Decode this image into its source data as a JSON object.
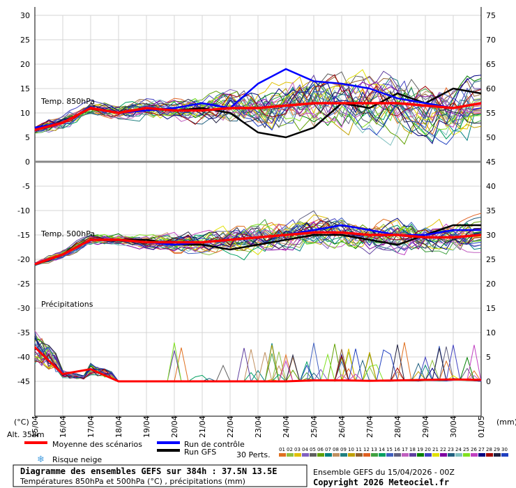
{
  "chart_data": {
    "type": "line",
    "title": "Diagramme des ensembles GEFS sur 384h : 37.5N 13.5E",
    "subtitle": "Températures 850hPa et 500hPa (°C) , précipitations (mm)",
    "dates": [
      "15/04",
      "16/04",
      "17/04",
      "18/04",
      "19/04",
      "20/04",
      "21/04",
      "22/04",
      "23/04",
      "24/04",
      "25/04",
      "26/04",
      "27/04",
      "28/04",
      "29/04",
      "30/04",
      "01/05"
    ],
    "left_ticks": [
      "30",
      "25",
      "20",
      "15",
      "10",
      "5",
      "0",
      "-5",
      "-10",
      "-15",
      "-20",
      "-25",
      "-30",
      "-35",
      "-40",
      "-45"
    ],
    "right_ticks": [
      "75",
      "70",
      "65",
      "60",
      "55",
      "50",
      "45",
      "40",
      "35",
      "30",
      "25",
      "20",
      "15",
      "10",
      "5",
      "0"
    ],
    "left_unit": "(°C)",
    "right_unit": "(mm)",
    "altitude": "Alt. 358m",
    "panel_labels": {
      "t850": "Temp. 850hPa",
      "t500": "Temp. 500hPa",
      "precip": "Précipitations"
    },
    "legend": {
      "mean": "Moyenne des scénarios",
      "control": "Run de contrôle",
      "gfs": "Run GFS",
      "snow": "Risque neige",
      "perts_label": "30 Perts."
    },
    "member_ids": [
      "01",
      "02",
      "03",
      "04",
      "05",
      "06",
      "07",
      "08",
      "09",
      "10",
      "11",
      "12",
      "13",
      "14",
      "15",
      "16",
      "17",
      "18",
      "19",
      "20",
      "21",
      "22",
      "23",
      "24",
      "25",
      "26",
      "27",
      "28",
      "29",
      "30"
    ],
    "member_colors": [
      "#e07020",
      "#90c040",
      "#e0c000",
      "#8060c0",
      "#606060",
      "#60a000",
      "#008080",
      "#c09060",
      "#208080",
      "#c0a000",
      "#906030",
      "#e06020",
      "#40a040",
      "#00a060",
      "#4060c0",
      "#606080",
      "#c060c0",
      "#6040a0",
      "#008000",
      "#4040c0",
      "#e0e000",
      "#8000a0",
      "#206080",
      "#80c0c0",
      "#80e020",
      "#c040c0",
      "#000080",
      "#a00000",
      "#202040",
      "#2040c0"
    ],
    "mean_color": "#ff0000",
    "control_color": "#0000ff",
    "gfs_color": "#000000",
    "t850": {
      "mean": [
        6.5,
        8,
        11,
        10,
        11,
        10.5,
        10.5,
        11,
        11,
        11.5,
        12,
        12,
        12,
        12,
        11.5,
        11,
        12
      ],
      "control": [
        7,
        8,
        11,
        10,
        10.5,
        11,
        12,
        11,
        16,
        19,
        16.5,
        16,
        15,
        13,
        12,
        11,
        12
      ],
      "gfs": [
        7,
        8,
        11,
        10,
        11,
        10.5,
        11,
        10,
        6,
        5,
        7,
        12,
        11,
        14,
        12,
        15,
        14
      ],
      "spread": [
        1,
        1.5,
        1.5,
        1.5,
        2,
        2.5,
        3,
        4,
        5,
        5.5,
        6,
        6,
        6,
        6,
        6,
        6,
        6
      ]
    },
    "t500": {
      "mean": [
        -21,
        -19,
        -16,
        -16,
        -16.5,
        -16.5,
        -16.5,
        -16,
        -15.5,
        -15,
        -14.5,
        -14.5,
        -15,
        -15,
        -15.5,
        -15.5,
        -15
      ],
      "control": [
        -21,
        -19,
        -16,
        -16,
        -16.5,
        -17,
        -16.5,
        -16,
        -15.5,
        -15,
        -14,
        -13,
        -14,
        -15,
        -15,
        -14,
        -14
      ],
      "gfs": [
        -21,
        -19,
        -16,
        -16,
        -16,
        -17,
        -17,
        -18,
        -17,
        -16,
        -15,
        -15,
        -16,
        -17,
        -15,
        -13,
        -13
      ],
      "spread": [
        0.5,
        1,
        1,
        1,
        1.5,
        2,
        2.5,
        3,
        3.5,
        3.5,
        3.5,
        3.5,
        3.5,
        3.5,
        3.5,
        3.5,
        3.5
      ]
    },
    "precip": {
      "mean": [
        7,
        1.5,
        2.5,
        0,
        0,
        0,
        0,
        0,
        0,
        0,
        0.2,
        0.2,
        0.1,
        0.2,
        0.3,
        0.4,
        0.3
      ]
    },
    "xlabel": "",
    "ylabel": "",
    "grid": true
  },
  "footer": {
    "title": "Diagramme des ensembles GEFS sur 384h : 37.5N 13.5E",
    "subtitle": "Températures 850hPa et 500hPa (°C) , précipitations (mm)",
    "run": "Ensemble GEFS du 15/04/2026 - 00Z",
    "copyright": "Copyright 2026 Meteociel.fr"
  }
}
